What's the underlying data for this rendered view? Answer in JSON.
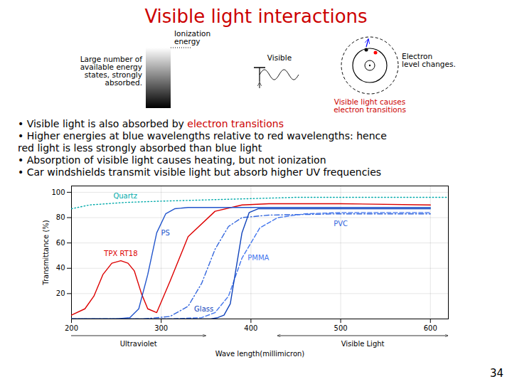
{
  "chart_data": {
    "type": "line",
    "title": "Visible light interactions",
    "title_color": "#cc0000",
    "x_label": "Wave length(millimicron)",
    "y_label": "Transmittance (%)",
    "xlim": [
      200,
      620
    ],
    "ylim": [
      0,
      105
    ],
    "xticks": [
      200,
      300,
      400,
      500,
      600
    ],
    "yticks": [
      20,
      40,
      60,
      80,
      100
    ],
    "grid": true,
    "series": [
      {
        "name": "Quartz",
        "color": "#00aaaa",
        "line_style": "dotted",
        "x": [
          200,
          220,
          260,
          300,
          350,
          400,
          450,
          500,
          600,
          620
        ],
        "values": [
          87,
          90,
          92,
          93,
          94,
          95,
          96,
          96,
          96,
          96
        ]
      },
      {
        "name": "TPX RT18",
        "color": "#dd0000",
        "line_style": "solid",
        "x": [
          200,
          215,
          225,
          235,
          245,
          255,
          263,
          270,
          278,
          285,
          295,
          310,
          330,
          360,
          390,
          420,
          500,
          600
        ],
        "values": [
          3,
          8,
          18,
          35,
          44,
          46,
          44,
          38,
          20,
          8,
          5,
          30,
          65,
          85,
          90,
          91,
          91,
          90
        ]
      },
      {
        "name": "PS",
        "color": "#2255cc",
        "line_style": "solid",
        "x": [
          200,
          250,
          265,
          275,
          285,
          295,
          305,
          315,
          330,
          360,
          400,
          500,
          600
        ],
        "values": [
          0,
          0,
          1,
          8,
          35,
          68,
          83,
          87,
          88,
          88,
          88,
          88,
          88
        ]
      },
      {
        "name": "PVC",
        "color": "#3366dd",
        "line_style": "dashdot",
        "x": [
          200,
          280,
          310,
          330,
          345,
          360,
          375,
          390,
          420,
          500,
          600
        ],
        "values": [
          0,
          0,
          2,
          10,
          28,
          55,
          73,
          80,
          82,
          83,
          83
        ]
      },
      {
        "name": "PMMA",
        "color": "#4477ee",
        "line_style": "dashed",
        "x": [
          200,
          310,
          345,
          360,
          375,
          390,
          410,
          430,
          460,
          500,
          600
        ],
        "values": [
          0,
          0,
          1,
          5,
          18,
          48,
          72,
          80,
          83,
          84,
          84
        ]
      },
      {
        "name": "Glass",
        "color": "#1144bb",
        "line_style": "solid",
        "x": [
          200,
          330,
          355,
          363,
          370,
          377,
          383,
          390,
          398,
          408,
          450,
          500,
          600
        ],
        "values": [
          0,
          0,
          0,
          1,
          3,
          12,
          38,
          68,
          84,
          87,
          87,
          87,
          87
        ]
      }
    ],
    "regions": [
      {
        "label": "Ultraviolet",
        "from": 0,
        "to": 350
      },
      {
        "label": "Visible Light",
        "from": 430,
        "to": 620
      }
    ],
    "annotations": [
      {
        "lines": [
          "Ionization",
          "energy"
        ]
      },
      {
        "lines": [
          "Large number of",
          "available energy",
          "states, strongly",
          "absorbed."
        ]
      },
      {
        "lines": [
          "Visible"
        ]
      },
      {
        "lines": [
          "Electron",
          "level changes."
        ]
      },
      {
        "lines": [
          "Visible light causes",
          "electron transitions"
        ],
        "color": "#cc0000"
      }
    ],
    "bullets": [
      [
        {
          "text": "• Visible light is also absorbed by ",
          "color": "#000000"
        },
        {
          "text": "electron transitions",
          "color": "#cc0000"
        }
      ],
      [
        {
          "text": "• Higher energies at blue wavelengths relative to red wavelengths: hence",
          "color": "#000000"
        }
      ],
      [
        {
          "text": "red light is less strongly absorbed than blue light",
          "color": "#000000"
        }
      ],
      [
        {
          "text": "• Absorption of visible light causes heating, but not ionization",
          "color": "#000000"
        }
      ],
      [
        {
          "text": "• Car windshields transmit visible light but absorb higher UV frequencies",
          "color": "#000000"
        }
      ]
    ],
    "page_number": "34"
  }
}
